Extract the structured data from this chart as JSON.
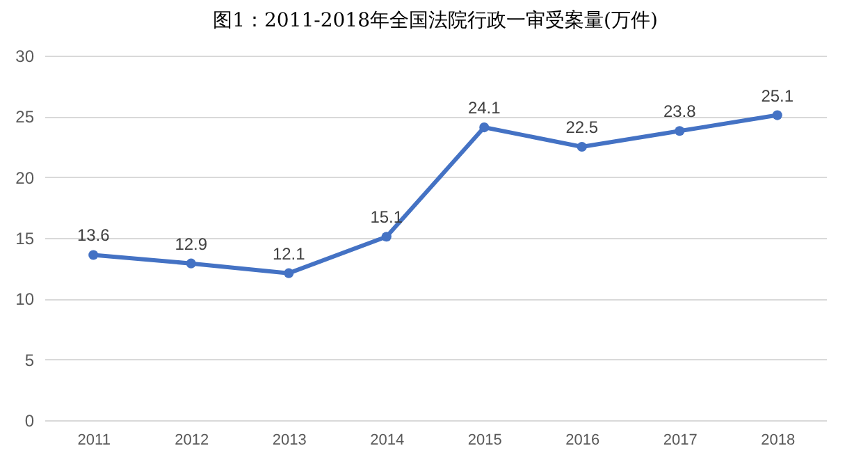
{
  "chart_data": {
    "type": "line",
    "title": "图1：2011-2018年全国法院行政一审受案量(万件)",
    "categories": [
      "2011",
      "2012",
      "2013",
      "2014",
      "2015",
      "2016",
      "2017",
      "2018"
    ],
    "series": [
      {
        "color": "#4472c4",
        "values": [
          13.6,
          12.9,
          12.1,
          15.1,
          24.1,
          22.5,
          23.8,
          25.1
        ]
      }
    ],
    "ylim": [
      0,
      30
    ],
    "yticks": [
      0,
      5,
      10,
      15,
      20,
      25,
      30
    ],
    "grid": "y",
    "marker": "circle",
    "line_style": "solid",
    "data_labels": true,
    "legend": false
  }
}
